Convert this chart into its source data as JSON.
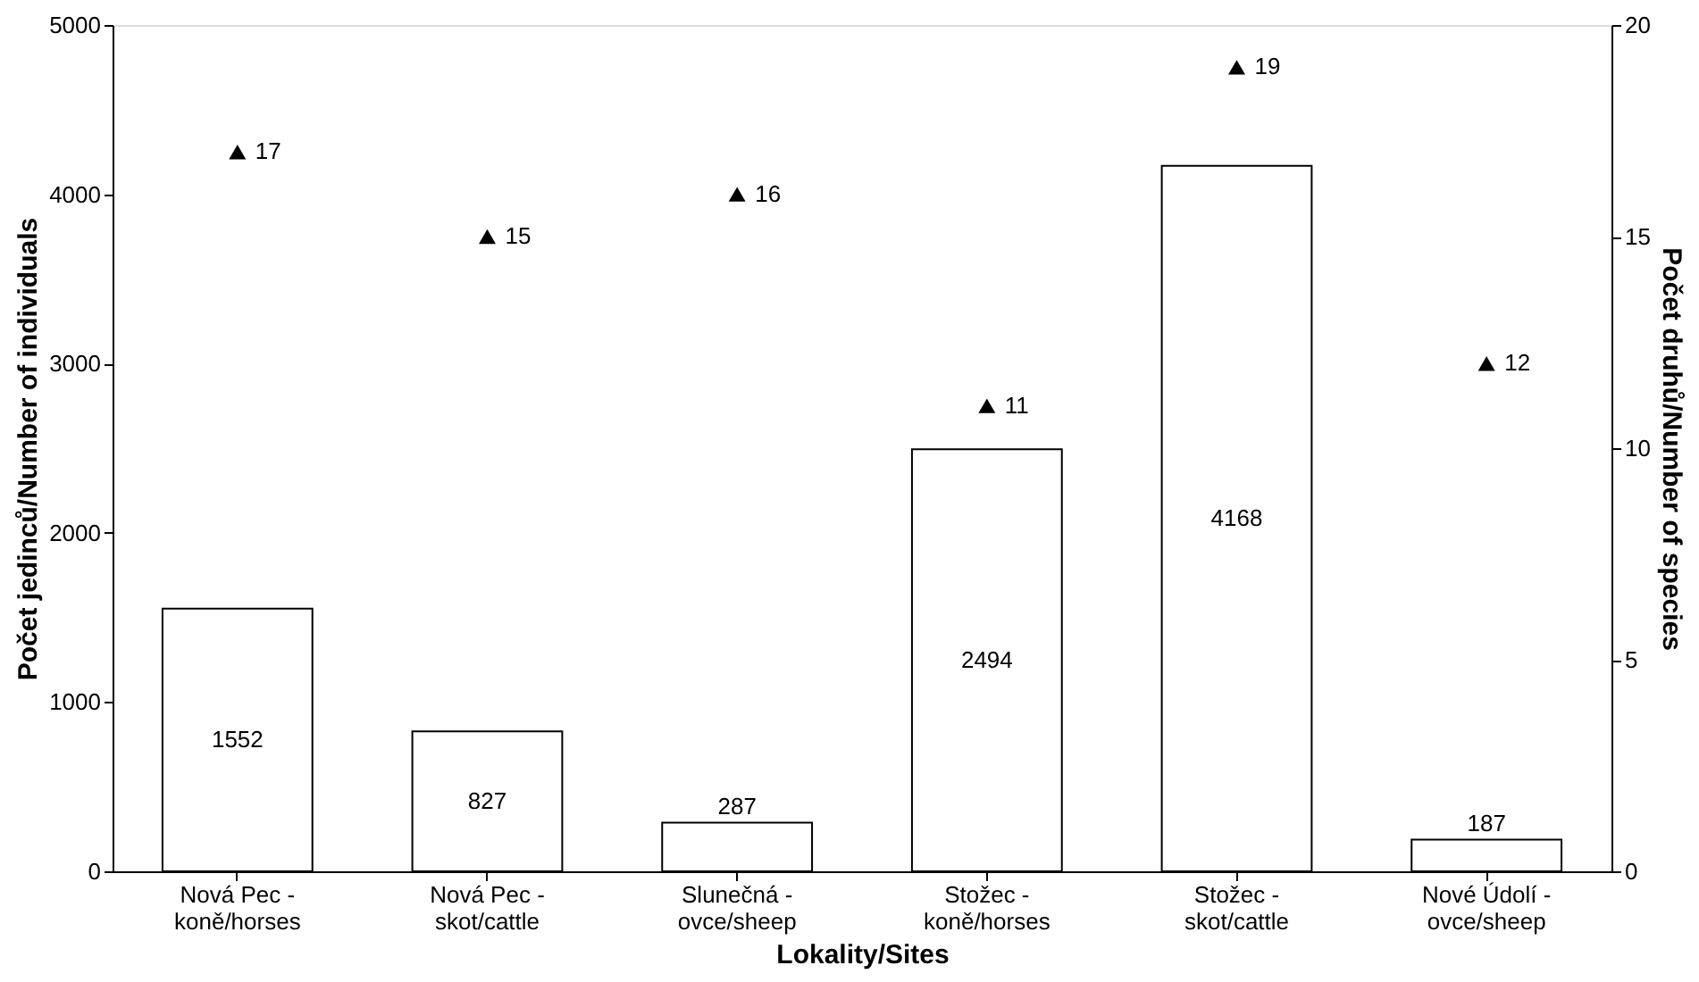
{
  "chart_data": {
    "type": "bar",
    "xlabel": "Lokality/Sites",
    "ylabel": "Počet jedinců/Number of individuals",
    "y2label": "Počet druhů/Number of species",
    "categories": [
      "Nová Pec -\nkoně/horses",
      "Nová Pec -\nskot/cattle",
      "Slunečná -\novce/sheep",
      "Stožec -\nkoně/horses",
      "Stožec -\nskot/cattle",
      "Nové Údolí -\novce/sheep"
    ],
    "series": [
      {
        "color": "#ffffff",
        "values": [
          1552,
          827,
          287,
          2494,
          4168,
          187
        ]
      },
      {
        "type": "scatter",
        "axis": "y2",
        "color": "#000000",
        "marker": "triangle",
        "values": [
          17,
          15,
          16,
          11,
          19,
          12
        ]
      }
    ],
    "ylim": [
      0,
      5000
    ],
    "yticks": [
      0,
      1000,
      2000,
      3000,
      4000,
      5000
    ],
    "y2lim": [
      0,
      20
    ],
    "y2ticks": [
      0,
      5,
      10,
      15,
      20
    ],
    "data_labels": true,
    "grid": false
  }
}
